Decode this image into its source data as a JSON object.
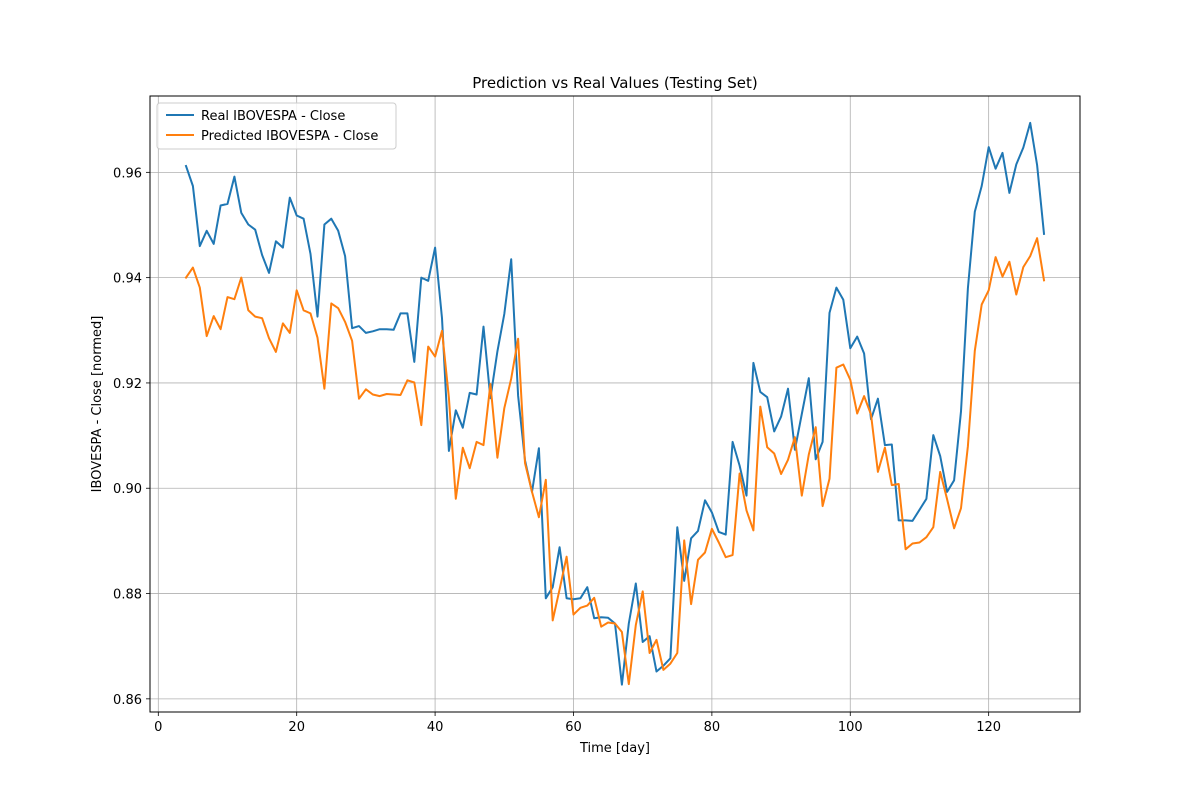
{
  "chart_data": {
    "type": "line",
    "title": "Prediction vs Real Values (Testing Set)",
    "xlabel": "Time [day]",
    "ylabel": "IBOVESPA - Close [normed]",
    "xlim": [
      -1.2,
      133.2
    ],
    "ylim": [
      0.8575,
      0.9745
    ],
    "xticks": [
      0,
      20,
      40,
      60,
      80,
      100,
      120
    ],
    "yticks": [
      0.86,
      0.88,
      0.9,
      0.92,
      0.94,
      0.96
    ],
    "ytick_labels": [
      "0.86",
      "0.88",
      "0.90",
      "0.92",
      "0.94",
      "0.96"
    ],
    "grid": true,
    "legend_position": "upper-left",
    "x_start": 4,
    "series": [
      {
        "name": "Real IBOVESPA - Close",
        "color": "#1f77b4",
        "values": [
          0.9612,
          0.9574,
          0.946,
          0.9489,
          0.9464,
          0.9537,
          0.954,
          0.9592,
          0.9523,
          0.9501,
          0.9491,
          0.9443,
          0.9409,
          0.9469,
          0.9457,
          0.9552,
          0.9518,
          0.9512,
          0.9445,
          0.9326,
          0.9501,
          0.9512,
          0.9489,
          0.9441,
          0.9304,
          0.9308,
          0.9295,
          0.9298,
          0.9302,
          0.9302,
          0.9301,
          0.9332,
          0.9332,
          0.924,
          0.94,
          0.9394,
          0.9457,
          0.9323,
          0.9071,
          0.9148,
          0.9115,
          0.9181,
          0.9178,
          0.9307,
          0.9171,
          0.926,
          0.9331,
          0.9435,
          0.9176,
          0.9053,
          0.8993,
          0.9076,
          0.8791,
          0.8812,
          0.8888,
          0.8791,
          0.8789,
          0.8791,
          0.8812,
          0.8753,
          0.8755,
          0.8754,
          0.8743,
          0.8627,
          0.8743,
          0.8819,
          0.8708,
          0.8719,
          0.8652,
          0.8663,
          0.8677,
          0.8926,
          0.8824,
          0.8905,
          0.8919,
          0.8977,
          0.8954,
          0.8917,
          0.8912,
          0.9088,
          0.9043,
          0.8986,
          0.9238,
          0.9183,
          0.9173,
          0.9108,
          0.9136,
          0.9189,
          0.9073,
          0.9141,
          0.9209,
          0.9055,
          0.9088,
          0.9333,
          0.9381,
          0.9358,
          0.9266,
          0.9288,
          0.9256,
          0.9131,
          0.917,
          0.9082,
          0.9083,
          0.8939,
          0.8939,
          0.8938,
          0.8959,
          0.898,
          0.9101,
          0.9061,
          0.8993,
          0.9015,
          0.9146,
          0.938,
          0.9525,
          0.9574,
          0.9648,
          0.9607,
          0.9637,
          0.9561,
          0.9615,
          0.9647,
          0.9694,
          0.9614,
          0.9483
        ]
      },
      {
        "name": "Predicted IBOVESPA - Close",
        "color": "#ff7f0e",
        "values": [
          0.94,
          0.9419,
          0.9381,
          0.9289,
          0.9327,
          0.9302,
          0.9363,
          0.9359,
          0.94,
          0.9338,
          0.9326,
          0.9323,
          0.9285,
          0.9259,
          0.9313,
          0.9295,
          0.9376,
          0.9338,
          0.9332,
          0.9286,
          0.9189,
          0.9351,
          0.9342,
          0.9316,
          0.928,
          0.917,
          0.9188,
          0.9178,
          0.9175,
          0.9179,
          0.9178,
          0.9177,
          0.9205,
          0.9201,
          0.912,
          0.9269,
          0.925,
          0.9299,
          0.9172,
          0.898,
          0.9077,
          0.9038,
          0.9088,
          0.9082,
          0.9198,
          0.9058,
          0.9152,
          0.9208,
          0.9284,
          0.9048,
          0.8993,
          0.8945,
          0.9016,
          0.8749,
          0.8808,
          0.887,
          0.876,
          0.8773,
          0.8777,
          0.8792,
          0.8737,
          0.8745,
          0.8743,
          0.8727,
          0.8628,
          0.874,
          0.8804,
          0.8687,
          0.8712,
          0.8655,
          0.8667,
          0.8687,
          0.8901,
          0.878,
          0.8864,
          0.8878,
          0.8923,
          0.8897,
          0.8869,
          0.8873,
          0.9028,
          0.8958,
          0.892,
          0.9155,
          0.9078,
          0.9066,
          0.9027,
          0.9054,
          0.9097,
          0.8986,
          0.9064,
          0.9116,
          0.8966,
          0.9018,
          0.9229,
          0.9235,
          0.9206,
          0.9142,
          0.9175,
          0.914,
          0.9031,
          0.9077,
          0.9006,
          0.9008,
          0.8884,
          0.8895,
          0.8897,
          0.8907,
          0.8926,
          0.9031,
          0.8979,
          0.8924,
          0.8962,
          0.908,
          0.9261,
          0.9349,
          0.9376,
          0.9439,
          0.9402,
          0.943,
          0.9368,
          0.942,
          0.9441,
          0.9475,
          0.9395
        ]
      }
    ]
  }
}
